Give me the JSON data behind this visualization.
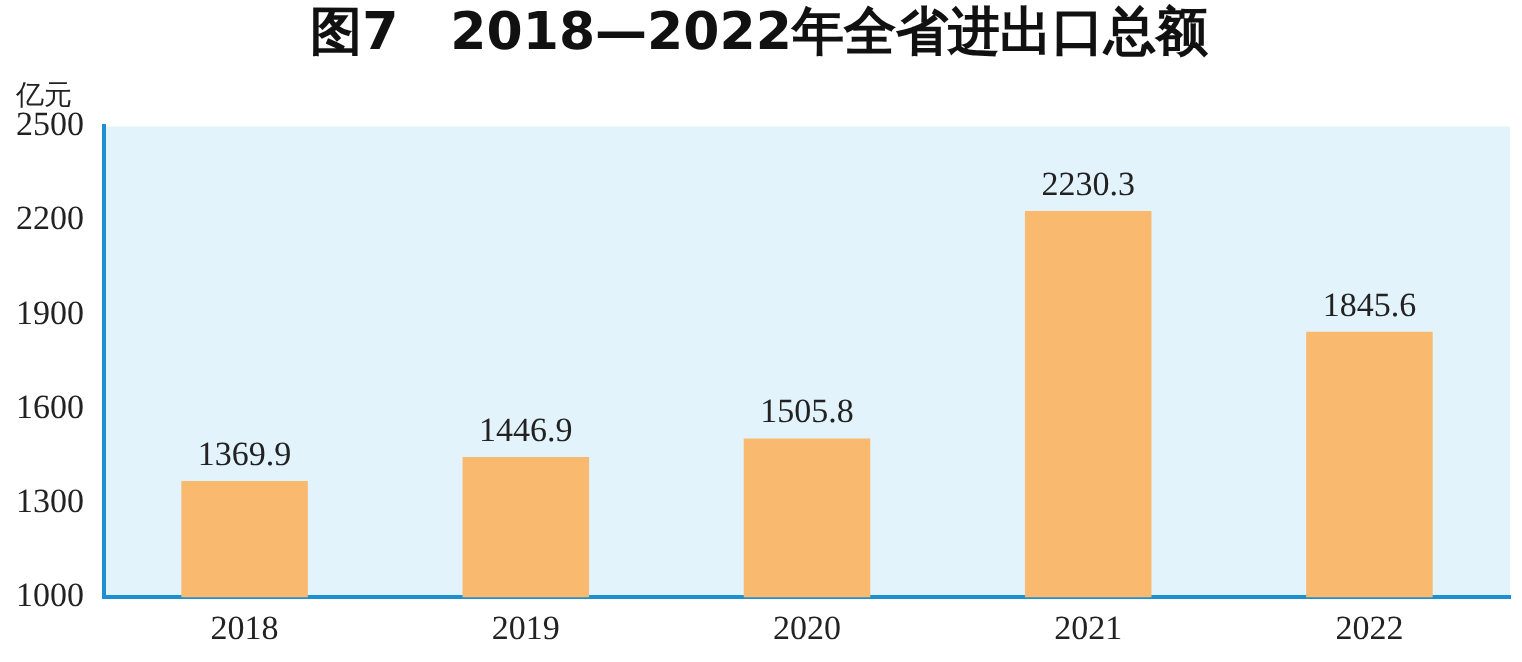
{
  "chart_data": {
    "type": "bar",
    "title": "图7　2018—2022年全省进出口总额",
    "ylabel": "亿元",
    "categories": [
      "2018",
      "2019",
      "2020",
      "2021",
      "2022"
    ],
    "values": [
      1369.9,
      1446.9,
      1505.8,
      2230.3,
      1845.6
    ],
    "color": "#f9b96e",
    "ylim": [
      1000,
      2500
    ],
    "yticks": [
      1000,
      1300,
      1600,
      1900,
      2200,
      2500
    ],
    "grid": false,
    "legend": false,
    "data_labels": true
  }
}
